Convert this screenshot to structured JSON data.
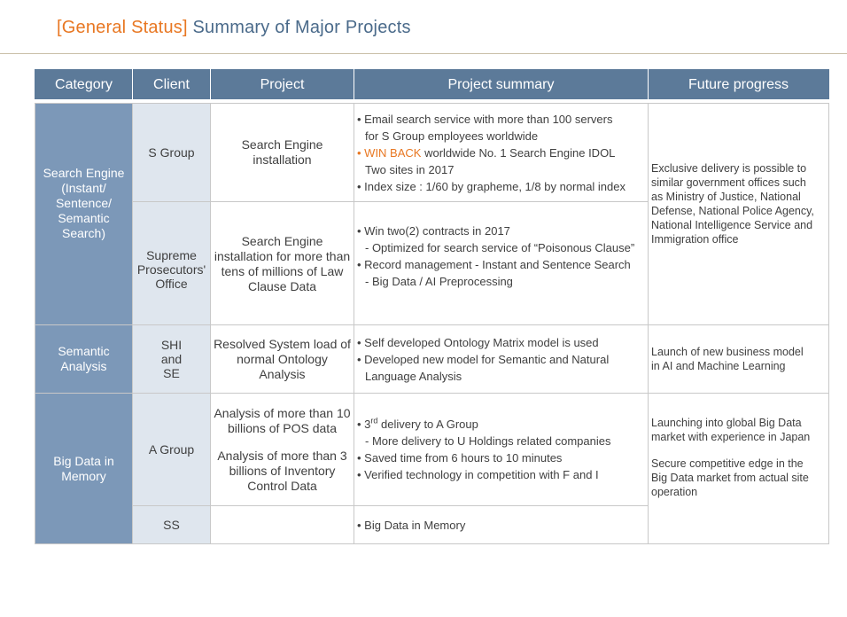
{
  "header": {
    "title_bracket": "[General Status]",
    "title_main": "Summary  of Major Projects"
  },
  "table": {
    "columns": [
      "Category",
      "Client",
      "Project",
      "Project summary",
      "Future progress"
    ],
    "categories": {
      "search": [
        "Search Engine",
        "(Instant/",
        "Sentence/",
        "Semantic",
        "Search)"
      ],
      "semantic": [
        "Semantic",
        "Analysis"
      ],
      "bigdata": [
        "Big Data in",
        "Memory"
      ]
    },
    "rows": {
      "s_group": {
        "client": "S Group",
        "project": [
          "Search Engine",
          "installation"
        ],
        "summary": {
          "l1": "• Email search service with more than 100 servers",
          "l2": "for S Group employees worldwide",
          "l3_bullet": "• ",
          "l3_accent": "WIN BACK",
          "l3_rest": " worldwide  No. 1 Search Engine IDOL",
          "l4": "Two sites in 2017",
          "l5": "• Index size :  1/60 by grapheme,  1/8 by normal  index"
        }
      },
      "supreme": {
        "client": [
          "Supreme",
          "Prosecutors'",
          "Office"
        ],
        "project": [
          "Search Engine",
          "installation for more than",
          "tens of millions of Law",
          "Clause Data"
        ],
        "summary": {
          "l1": "• Win two(2) contracts in 2017",
          "l2": "- Optimized for search service of “Poisonous Clause”",
          "l3": "• Record management - Instant and Sentence Search",
          "l4": "- Big Data / AI Preprocessing"
        }
      },
      "shi": {
        "client": [
          "SHI",
          "and",
          "SE"
        ],
        "project": [
          "Resolved System load of",
          "normal Ontology",
          "Analysis"
        ],
        "summary": {
          "l1": "• Self developed  Ontology Matrix model is used",
          "l2": "• Developed  new model for Semantic and Natural",
          "l3": "Language Analysis"
        }
      },
      "a_group": {
        "client": "A Group",
        "project": [
          "Analysis of more than 10",
          "billions of POS data",
          "",
          "Analysis of more than 3",
          "billions of Inventory",
          "Control Data"
        ],
        "summary": {
          "l1_pre": "• 3",
          "l1_sup": "rd",
          "l1_post": " delivery to A Group",
          "l2": "-  More delivery to U Holdings related companies",
          "l3": "• Saved time from 6 hours to 10 minutes",
          "l4": "• Verified technology in competition with F and I"
        }
      },
      "ss": {
        "client": "SS",
        "project": "",
        "summary": "• Big Data in Memory"
      }
    },
    "future": {
      "search": [
        "Exclusive delivery  is possible to",
        "similar government  offices such",
        "as Ministry of Justice, National",
        "Defense, National Police Agency,",
        "National Intelligence Service and",
        "Immigration office"
      ],
      "semantic": [
        "Launch of new business model",
        "in AI and Machine Learning"
      ],
      "bigdata": [
        "Launching into global Big Data",
        "market with experience in Japan",
        "",
        "Secure competitive edge in the",
        "Big Data market from actual site",
        "operation"
      ]
    }
  },
  "colors": {
    "header_bg": "#5c7a99",
    "category_bg": "#7c98b8",
    "client_bg": "#dfe6ee",
    "accent": "#e87722",
    "title_main": "#4a6a8a"
  }
}
